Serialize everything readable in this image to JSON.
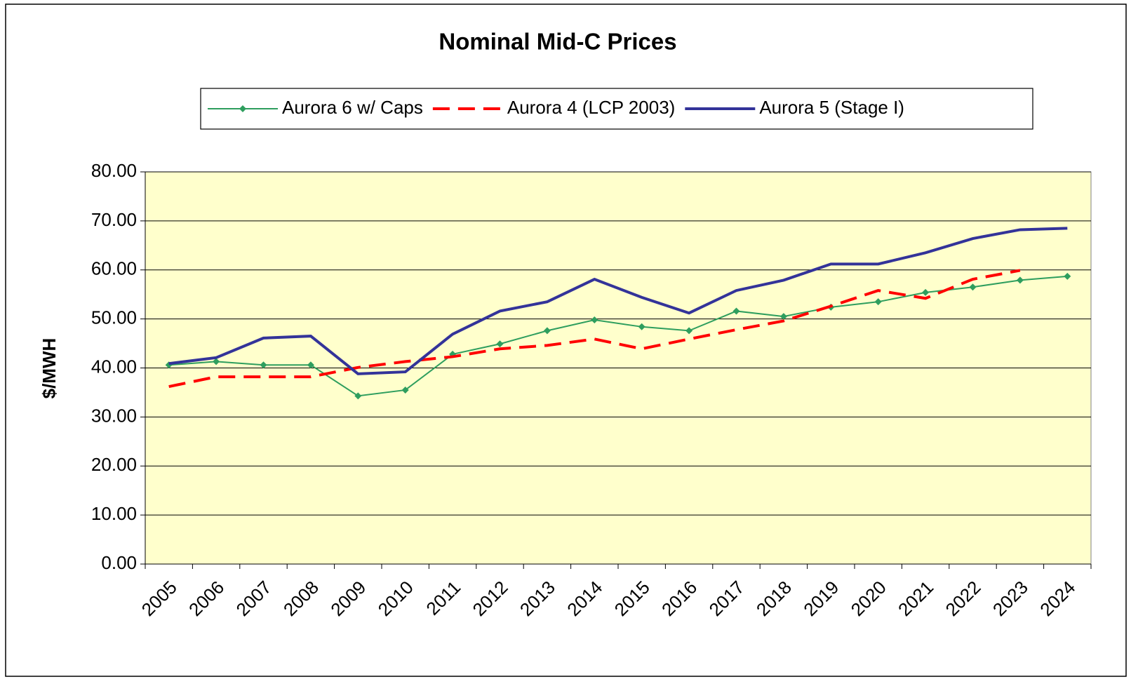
{
  "chart_data": {
    "type": "line",
    "title": "Nominal Mid-C Prices",
    "y_label": "$/MWH",
    "categories": [
      "2005",
      "2006",
      "2007",
      "2008",
      "2009",
      "2010",
      "2011",
      "2012",
      "2013",
      "2014",
      "2015",
      "2016",
      "2017",
      "2018",
      "2019",
      "2020",
      "2021",
      "2022",
      "2023",
      "2024"
    ],
    "series": [
      {
        "name": "Aurora 6 w/ Caps",
        "color": "#2e9e5e",
        "style": "solid-markers",
        "values": [
          40.6,
          41.3,
          40.6,
          40.6,
          34.3,
          35.5,
          42.8,
          44.9,
          47.6,
          49.8,
          48.4,
          47.6,
          51.6,
          50.5,
          52.4,
          53.5,
          55.4,
          56.5,
          57.9,
          58.7
        ]
      },
      {
        "name": "Aurora 4 (LCP 2003)",
        "color": "#ff0000",
        "style": "dashed",
        "values": [
          36.2,
          38.2,
          38.2,
          38.2,
          40.1,
          41.3,
          42.3,
          43.9,
          44.6,
          45.9,
          43.9,
          45.9,
          47.8,
          49.6,
          52.6,
          55.8,
          54.2,
          58.1,
          59.9,
          null
        ]
      },
      {
        "name": "Aurora 5 (Stage I)",
        "color": "#333399",
        "style": "solid",
        "values": [
          40.9,
          42.1,
          46.1,
          46.5,
          38.8,
          39.2,
          46.9,
          51.6,
          53.5,
          58.1,
          54.4,
          51.2,
          55.8,
          57.9,
          61.2,
          61.2,
          63.5,
          66.4,
          68.2,
          68.5
        ]
      }
    ],
    "ylim": [
      0,
      80
    ],
    "yticks": [
      {
        "value": 0,
        "label": "0.00"
      },
      {
        "value": 10,
        "label": "10.00"
      },
      {
        "value": 20,
        "label": "20.00"
      },
      {
        "value": 30,
        "label": "30.00"
      },
      {
        "value": 40,
        "label": "40.00"
      },
      {
        "value": 50,
        "label": "50.00"
      },
      {
        "value": 60,
        "label": "60.00"
      },
      {
        "value": 70,
        "label": "70.00"
      },
      {
        "value": 80,
        "label": "80.00"
      }
    ],
    "grid": true,
    "legend": "top",
    "plot_background": "#ffffcc"
  }
}
